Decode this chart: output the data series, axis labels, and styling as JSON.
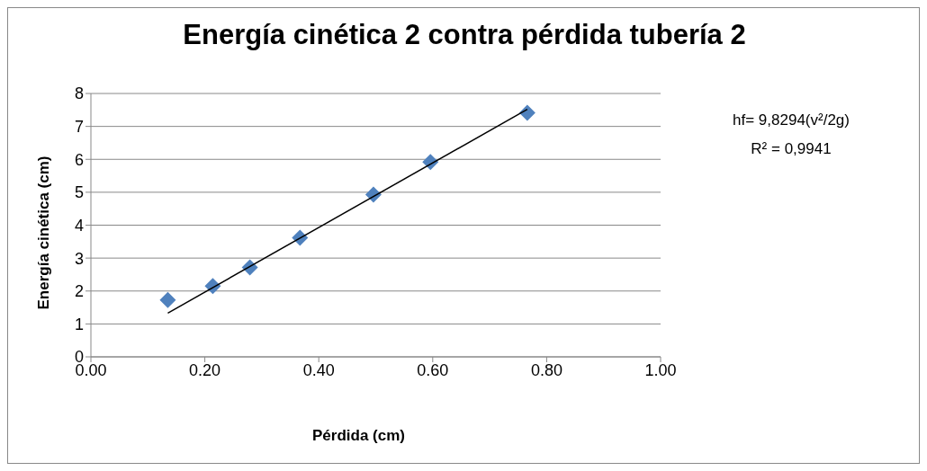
{
  "chart_data": {
    "type": "scatter",
    "title": "Energía cinética 2 contra pérdida tubería 2",
    "xlabel": "Pérdida (cm)",
    "ylabel": "Energía cinética (cm)",
    "annotations": [
      "hf= 9,8294(v²/2g)",
      "R² = 0,9941"
    ],
    "x": [
      0.135,
      0.214,
      0.279,
      0.367,
      0.496,
      0.596,
      0.766
    ],
    "series": [
      {
        "color": "#4f81bd",
        "marker": "diamond",
        "values": [
          1.73,
          2.15,
          2.72,
          3.62,
          4.93,
          5.92,
          7.41
        ]
      },
      {
        "type": "line",
        "color": "#000000",
        "marker": "none",
        "line_style": "solid",
        "x": [
          0.135,
          0.766
        ],
        "values": [
          1.33,
          7.52
        ]
      }
    ],
    "xlim": [
      0,
      1
    ],
    "xticks": [
      {
        "value": 0,
        "label": "0.00"
      },
      {
        "value": 0.2,
        "label": "0.20"
      },
      {
        "value": 0.4,
        "label": "0.40"
      },
      {
        "value": 0.6,
        "label": "0.60"
      },
      {
        "value": 0.8,
        "label": "0.80"
      },
      {
        "value": 1,
        "label": "1.00"
      }
    ],
    "ylim": [
      0,
      8
    ],
    "yticks": [
      0,
      1,
      2,
      3,
      4,
      5,
      6,
      7,
      8
    ],
    "grid": "y",
    "legend": false
  }
}
